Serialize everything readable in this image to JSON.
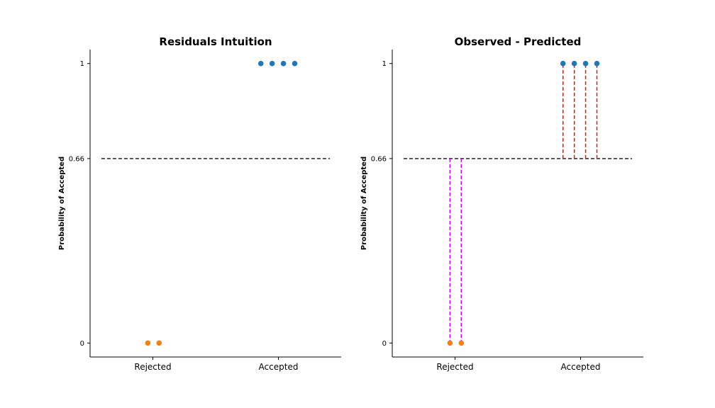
{
  "colors": {
    "accepted": "#1f77b4",
    "rejected": "#ff7f0e",
    "mean_line": "#222222",
    "positive_residual": "#ee1111",
    "negative_residual": "#bb00dd",
    "axis": "#000000"
  },
  "chart_data": [
    {
      "type": "scatter",
      "title": "Residuals Intuition",
      "ylabel": "Probability of Accepted",
      "xlabel": "",
      "categories": [
        "Rejected",
        "Accepted"
      ],
      "yticks": [
        {
          "value": 0,
          "label": "0"
        },
        {
          "value": 0.66,
          "label": "0.66"
        },
        {
          "value": 1,
          "label": "1"
        }
      ],
      "ylim": [
        -0.05,
        1.05
      ],
      "xlim": [
        -0.5,
        1.5
      ],
      "grid": false,
      "series": [
        {
          "key": "accepted",
          "x": [
            0.86,
            0.95,
            1.04,
            1.13
          ],
          "y": [
            1,
            1,
            1,
            1
          ]
        },
        {
          "key": "rejected",
          "x": [
            -0.04,
            0.05
          ],
          "y": [
            0,
            0
          ]
        }
      ],
      "mean_line": {
        "y": 0.66,
        "x_range": [
          -0.41,
          1.41
        ]
      },
      "residuals": []
    },
    {
      "type": "scatter",
      "title": "Observed - Predicted",
      "ylabel": "Probability of Accepted",
      "xlabel": "",
      "categories": [
        "Rejected",
        "Accepted"
      ],
      "yticks": [
        {
          "value": 0,
          "label": "0"
        },
        {
          "value": 0.66,
          "label": "0.66"
        },
        {
          "value": 1,
          "label": "1"
        }
      ],
      "ylim": [
        -0.05,
        1.05
      ],
      "xlim": [
        -0.5,
        1.5
      ],
      "grid": false,
      "series": [
        {
          "key": "accepted",
          "x": [
            0.86,
            0.95,
            1.04,
            1.13
          ],
          "y": [
            1,
            1,
            1,
            1
          ]
        },
        {
          "key": "rejected",
          "x": [
            -0.04,
            0.05
          ],
          "y": [
            0,
            0
          ]
        }
      ],
      "mean_line": {
        "y": 0.66,
        "x_range": [
          -0.41,
          1.41
        ]
      },
      "residuals": [
        {
          "x": 0.86,
          "from": 0.66,
          "to": 1,
          "color_key": "positive_residual"
        },
        {
          "x": 0.95,
          "from": 0.66,
          "to": 1,
          "color_key": "positive_residual"
        },
        {
          "x": 1.04,
          "from": 0.66,
          "to": 1,
          "color_key": "positive_residual"
        },
        {
          "x": 1.13,
          "from": 0.66,
          "to": 1,
          "color_key": "positive_residual"
        },
        {
          "x": -0.04,
          "from": 0.66,
          "to": 0,
          "color_key": "negative_residual"
        },
        {
          "x": 0.05,
          "from": 0.66,
          "to": 0,
          "color_key": "negative_residual"
        }
      ]
    }
  ]
}
